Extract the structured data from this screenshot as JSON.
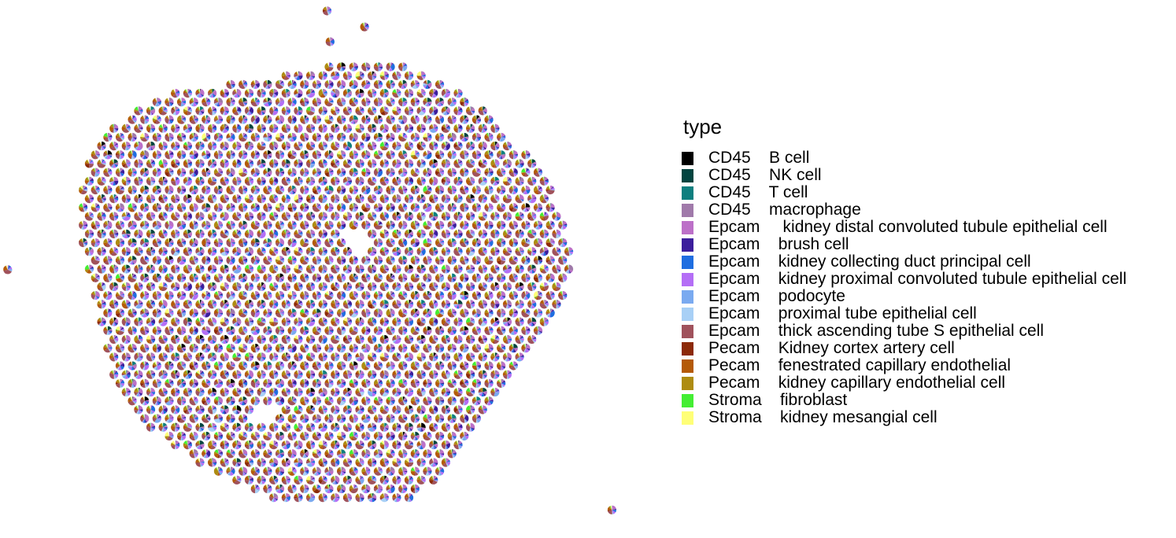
{
  "chart_data": {
    "type": "scatter",
    "subtype": "spatial-scatterpie",
    "title": "",
    "xlabel": "",
    "ylabel": "",
    "grid": false,
    "axes_visible": false,
    "legend_placement": "right",
    "legend": {
      "title": "type",
      "entries": [
        {
          "label": "CD45    B cell",
          "color": "#000000"
        },
        {
          "label": "CD45    NK cell",
          "color": "#034540"
        },
        {
          "label": "CD45    T cell",
          "color": "#0E7F7F"
        },
        {
          "label": "CD45    macrophage",
          "color": "#A07AAA"
        },
        {
          "label": "Epcam     kidney distal convoluted tubule epithelial cell",
          "color": "#BC70C8"
        },
        {
          "label": "Epcam    brush cell",
          "color": "#3C1E9C"
        },
        {
          "label": "Epcam    kidney collecting duct principal cell",
          "color": "#1F6EE0"
        },
        {
          "label": "Epcam    kidney proximal convoluted tubule epithelial cell",
          "color": "#B46EF6"
        },
        {
          "label": "Epcam    podocyte",
          "color": "#7AAAF0"
        },
        {
          "label": "Epcam    proximal tube epithelial cell",
          "color": "#A8D0F6"
        },
        {
          "label": "Epcam    thick ascending tube S epithelial cell",
          "color": "#A0525C"
        },
        {
          "label": "Pecam    Kidney cortex artery cell",
          "color": "#8C2A08"
        },
        {
          "label": "Pecam    fenestrated capillary endothelial",
          "color": "#B45A08"
        },
        {
          "label": "Pecam    kidney capillary endothelial cell",
          "color": "#AE8C12"
        },
        {
          "label": "Stroma    fibroblast",
          "color": "#44EE33"
        },
        {
          "label": "Stroma    kidney mesangial cell",
          "color": "#FFFF77"
        }
      ]
    },
    "spot_grid": {
      "x_range": [
        0,
        42
      ],
      "y_range": [
        0,
        42
      ],
      "tissue_center": [
        21,
        20
      ],
      "tissue_radius_x": 16,
      "tissue_radius_y": 18
    },
    "outlier_spots": [
      {
        "x": 0.2,
        "y": 20.5
      },
      {
        "x": 40.5,
        "y": 1.0
      },
      {
        "x": 21.5,
        "y": 41.5
      },
      {
        "x": 24.0,
        "y": 40.2
      },
      {
        "x": 21.7,
        "y": 39.0
      }
    ]
  }
}
